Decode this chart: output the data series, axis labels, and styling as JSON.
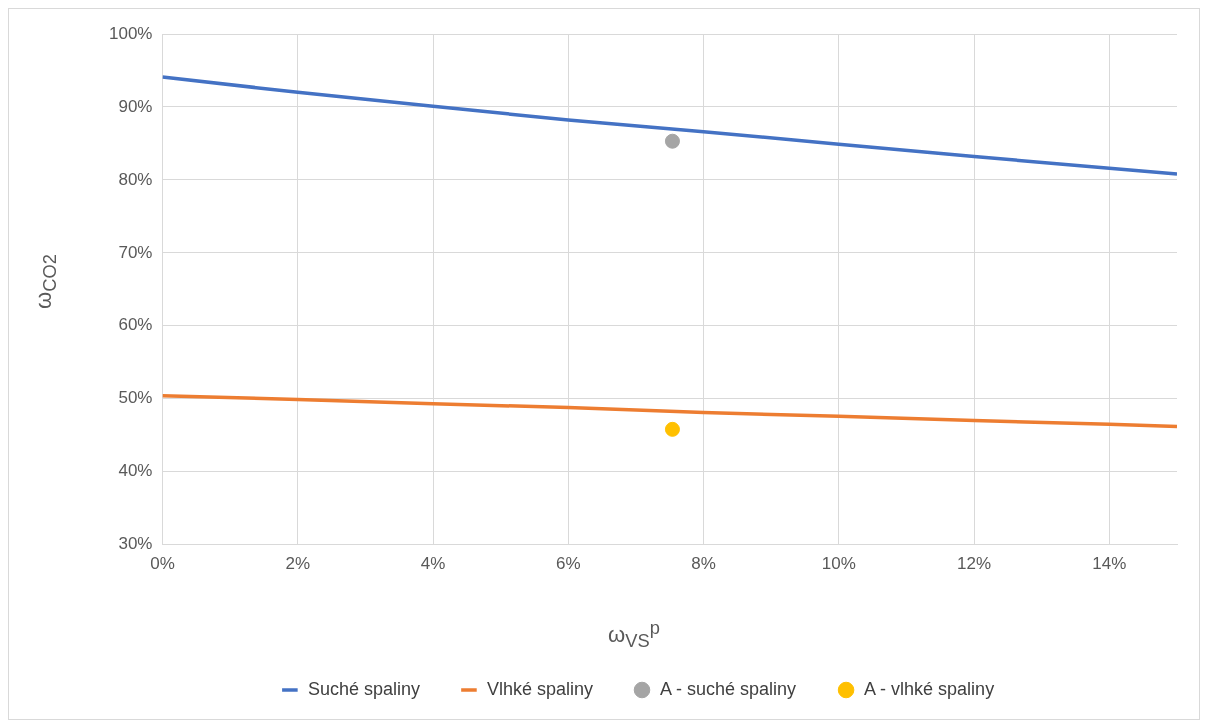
{
  "chart_data": {
    "type": "line",
    "xlabel": "ω$_{VS}$$^{p}$",
    "ylabel": "ω$_{CO2}$",
    "xlim": [
      0,
      15
    ],
    "ylim": [
      30,
      100
    ],
    "xticks": [
      {
        "value": 0,
        "label": "0%"
      },
      {
        "value": 2,
        "label": "2%"
      },
      {
        "value": 4,
        "label": "4%"
      },
      {
        "value": 6,
        "label": "6%"
      },
      {
        "value": 8,
        "label": "8%"
      },
      {
        "value": 10,
        "label": "10%"
      },
      {
        "value": 12,
        "label": "12%"
      },
      {
        "value": 14,
        "label": "14%"
      }
    ],
    "yticks": [
      {
        "value": 30,
        "label": "30%"
      },
      {
        "value": 40,
        "label": "40%"
      },
      {
        "value": 50,
        "label": "50%"
      },
      {
        "value": 60,
        "label": "60%"
      },
      {
        "value": 70,
        "label": "70%"
      },
      {
        "value": 80,
        "label": "80%"
      },
      {
        "value": 90,
        "label": "90%"
      },
      {
        "value": 100,
        "label": "100%"
      }
    ],
    "grid": true,
    "legend": "bottom",
    "series": [
      {
        "name": "Suché spaliny",
        "type": "line",
        "marker": "none",
        "color": "#4472c4",
        "x": [
          0,
          2,
          4,
          6,
          8,
          10,
          12,
          14,
          15
        ],
        "values": [
          94.1,
          92.0,
          90.1,
          88.2,
          86.6,
          84.9,
          83.2,
          81.6,
          80.8
        ]
      },
      {
        "name": "Vlhké spaliny",
        "type": "line",
        "marker": "none",
        "color": "#ed7d31",
        "x": [
          0,
          2,
          4,
          6,
          8,
          10,
          12,
          14,
          15
        ],
        "values": [
          50.4,
          49.9,
          49.3,
          48.8,
          48.1,
          47.6,
          47.0,
          46.5,
          46.2
        ]
      },
      {
        "name": "A - suché spaliny",
        "type": "scatter",
        "marker": "circle",
        "color": "#a5a5a5",
        "x": [
          7.54
        ],
        "values": [
          85.3
        ]
      },
      {
        "name": "A - vlhké spaliny",
        "type": "scatter",
        "marker": "circle",
        "color": "#ffc000",
        "x": [
          7.54
        ],
        "values": [
          45.8
        ]
      }
    ]
  }
}
